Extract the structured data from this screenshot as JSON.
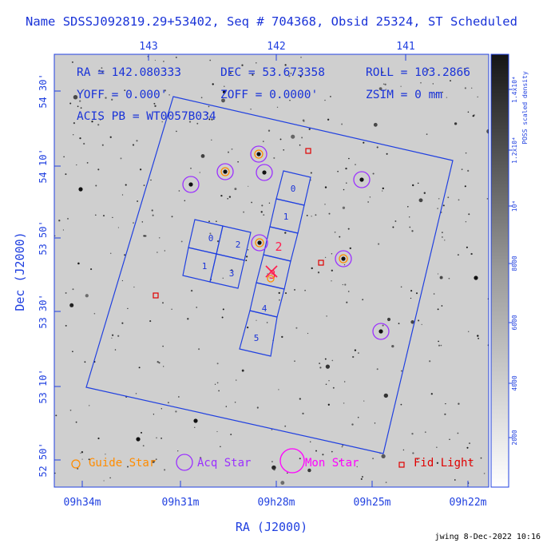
{
  "title": "Name SDSSJ092819.29+53402, Seq # 704368, Obsid 25324, ST Scheduled",
  "info": {
    "ra": "RA = 142.080333",
    "dec": "DEC = 53.673358",
    "roll": "ROLL = 103.2866",
    "yoff": "YOFF = 0.000'",
    "zoff": "ZOFF = 0.0000'",
    "zsim": "ZSIM = 0 mm",
    "acis": "ACIS PB = WT0057B034"
  },
  "axes": {
    "xlabel": "RA (J2000)",
    "ylabel": "Dec (J2000)",
    "x_ticks": [
      "09h34m",
      "09h31m",
      "09h28m",
      "09h25m",
      "09h22m"
    ],
    "top_ticks": [
      "143",
      "142",
      "141"
    ],
    "y_ticks": [
      "54 30'",
      "54 10'",
      "53 50'",
      "53 30'",
      "53 10'",
      "52 50'"
    ]
  },
  "colorbar": {
    "label": "POSS scaled density",
    "ticks": [
      "2000",
      "4000",
      "6000",
      "8000",
      "10⁴",
      "1.2x10⁴",
      "1.4x10⁴"
    ]
  },
  "chips": {
    "i_array": [
      "0",
      "2",
      "1",
      "3"
    ],
    "s_array": [
      "0",
      "1",
      "2",
      "3",
      "4",
      "5"
    ]
  },
  "legend": {
    "guide": "Guide Star",
    "acq": "Acq Star",
    "mon": "Mon Star",
    "fid": "Fid Light"
  },
  "colors": {
    "axis": "#2040e0",
    "guide": "#ff8c00",
    "acq": "#9b30ff",
    "mon": "#ff00ff",
    "fid": "#e00000",
    "target": "#ff2050"
  },
  "footer": "jwing 8-Dec-2022 10:16"
}
